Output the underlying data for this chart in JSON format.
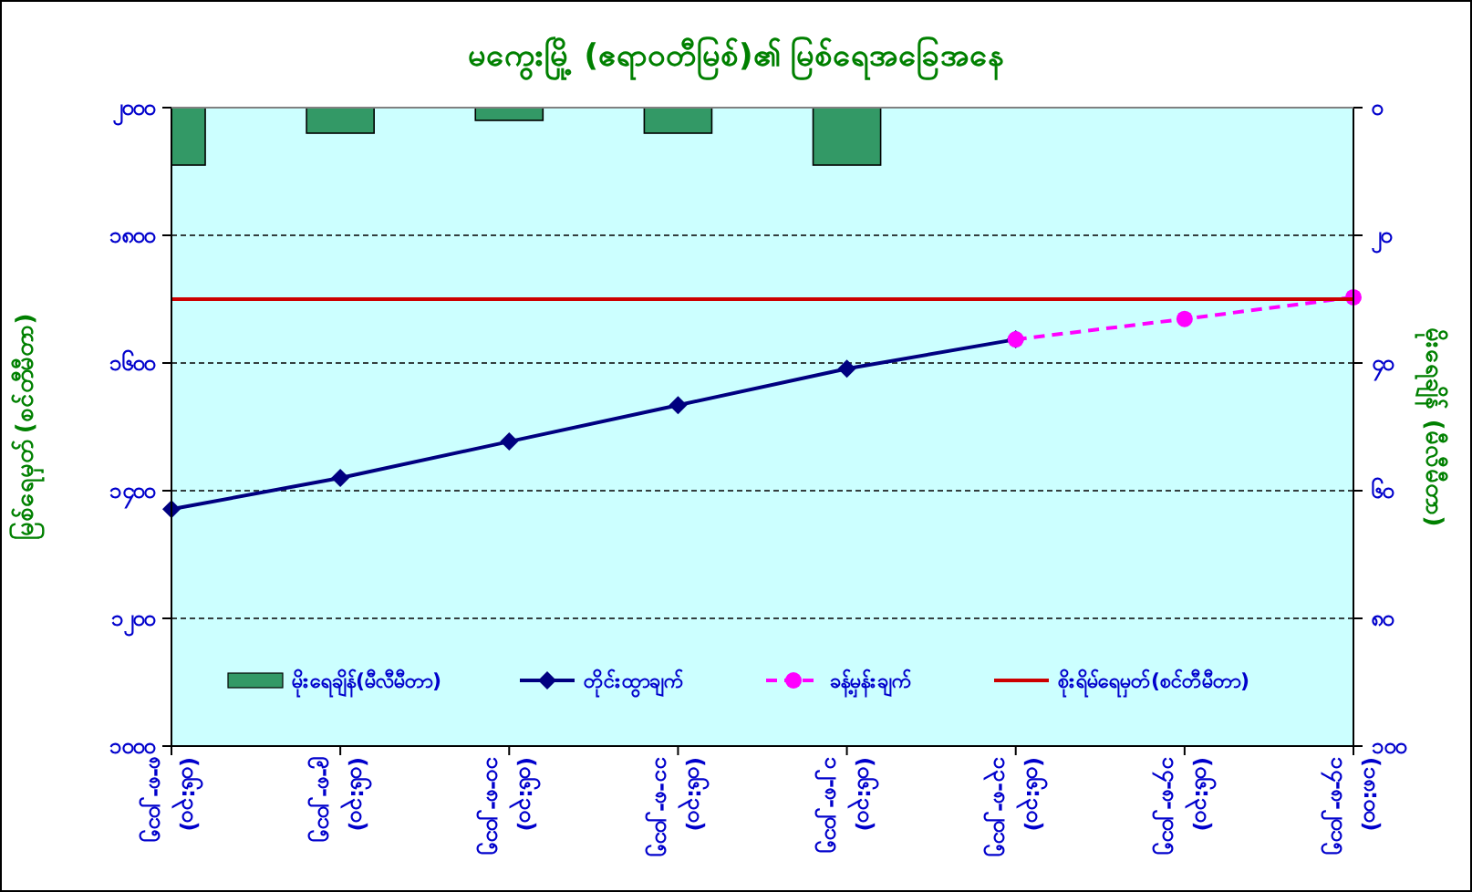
{
  "chart_data": {
    "type": "line",
    "title": "မကွေးမြို့ (ဧရာဝတီမြစ်)၏ မြစ်ရေအခြေအနေ",
    "ylabel": "မြစ်ရေမှတ် (စင်တီမီတာ)",
    "y2label": "မိုးရေချိန် (မီလီမီတာ)",
    "categories": [
      "၈-၈-၂၀၁၅ (၀၆:၃၀)",
      "၉-၈-၂၀၁၅ (၀၆:၃၀)",
      "၁၀-၈-၂၀၁၅ (၀၆:၃၀)",
      "၁၁-၈-၂၀၁၅ (၀၆:၃၀)",
      "၁၂-၈-၂၀၁၅ (၀၆:၃၀)",
      "၁၃-၈-၂၀၁၅ (၀၆:၃၀)",
      "၁၄-၈-၂၀၁၅ (၀၆:၃၀)",
      "၁၄-၈-၂၀၁၅ (၁၈:၀၀)"
    ],
    "series": [
      {
        "name": "မိုးရေချိန်(မီလီမီတာ)",
        "type": "bar",
        "axis": "y2",
        "color": "#339966",
        "values": [
          9,
          4,
          2,
          4,
          9,
          null,
          null,
          null
        ]
      },
      {
        "name": "တိုင်းထွာချက်",
        "color": "#000080",
        "marker": "diamond",
        "line_style": "solid",
        "values": [
          1371,
          1420,
          1477,
          1534,
          1591,
          1637,
          null,
          null
        ]
      },
      {
        "name": "ခန့်မှန်းချက်",
        "color": "#ff00ff",
        "marker": "circle",
        "line_style": "dashed",
        "values": [
          null,
          null,
          null,
          null,
          null,
          1637,
          1669,
          1703
        ]
      },
      {
        "name": "စိုးရိမ်ရေမှတ်(စင်တီမီတာ)",
        "color": "#cc0000",
        "marker": "none",
        "line_style": "solid",
        "values": [
          1700,
          1700,
          1700,
          1700,
          1700,
          1700,
          1700,
          1700
        ]
      }
    ],
    "ylim": [
      1000,
      2000
    ],
    "yticks": [
      {
        "value": 1000,
        "label": "၁၀၀၀"
      },
      {
        "value": 1200,
        "label": "၁၂၀၀"
      },
      {
        "value": 1400,
        "label": "၁၄၀၀"
      },
      {
        "value": 1600,
        "label": "၁၆၀၀"
      },
      {
        "value": 1800,
        "label": "၁၈၀၀"
      },
      {
        "value": 2000,
        "label": "၂၀၀၀"
      }
    ],
    "y2lim": [
      100,
      0
    ],
    "y2ticks": [
      {
        "value": 0,
        "label": "၀"
      },
      {
        "value": 20,
        "label": "၂၀"
      },
      {
        "value": 40,
        "label": "၄၀"
      },
      {
        "value": 60,
        "label": "၆၀"
      },
      {
        "value": 80,
        "label": "၈၀"
      },
      {
        "value": 100,
        "label": "၁၀၀"
      }
    ],
    "grid": "y",
    "legend": "bottom"
  }
}
